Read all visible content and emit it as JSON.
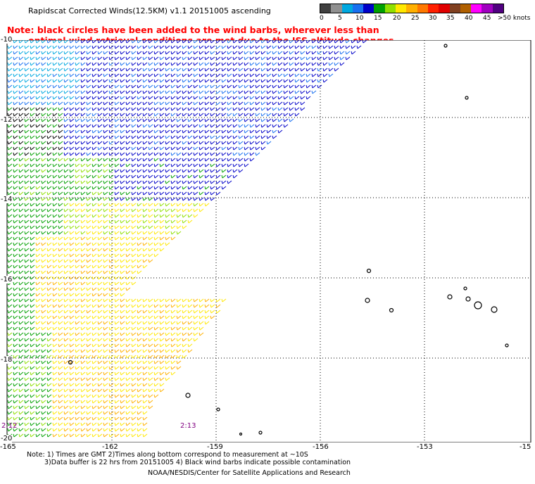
{
  "title": "Rapidscat Corrected Winds(12.5KM) v1.1 20151005 ascending",
  "note": {
    "line1": "Note: black circles have been added to the wind barbs, wherever less than",
    "line2": "optimal wind retrieval conditions are met due to the ISS altitude changes."
  },
  "legend": {
    "colors": [
      "#404040",
      "#909090",
      "#00a8e0",
      "#1870f0",
      "#0000c8",
      "#00a000",
      "#90e000",
      "#ffe800",
      "#ffb000",
      "#ff7800",
      "#ff2000",
      "#e00000",
      "#804020",
      "#b06000",
      "#ff00ff",
      "#a000c0",
      "#500080"
    ],
    "labels": [
      "0",
      "5",
      "10",
      "15",
      "20",
      "25",
      "30",
      "35",
      "40",
      "45",
      ">50 knots"
    ]
  },
  "map": {
    "lat_labels": [
      "-10",
      "-12",
      "-14",
      "-16",
      "-18",
      "-20"
    ],
    "lon_labels": [
      "-165",
      "-162",
      "-159",
      "-156",
      "-153",
      "-15"
    ],
    "time_labels": [
      "2:12",
      "2:13"
    ]
  },
  "footnote": {
    "line1": "Note: 1) Times are GMT 2)Times along bottom correspond to measurement at ~10S",
    "line2": "3)Data buffer is 22 hrs from 20151005 4) Black wind barbs indicate possible contamination"
  },
  "credit": "NOAA/NESDIS/Center for Satellite Applications and Research"
}
